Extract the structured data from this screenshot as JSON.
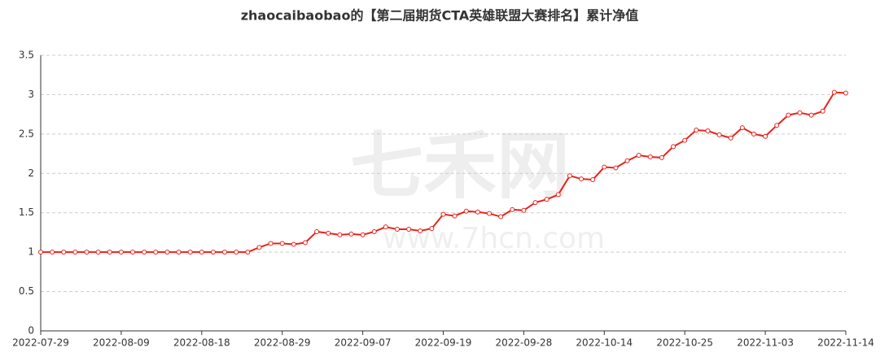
{
  "chart_data": {
    "type": "line",
    "title": "zhaocaibaobao的【第二届期货CTA英雄联盟大赛排名】累计净值",
    "watermark": "七禾网",
    "watermark_url": "www.7hcn.com",
    "categories": [
      "2022-07-29",
      null,
      null,
      null,
      null,
      null,
      null,
      "2022-08-09",
      null,
      null,
      null,
      null,
      null,
      null,
      "2022-08-18",
      null,
      null,
      null,
      null,
      null,
      null,
      "2022-08-29",
      null,
      null,
      null,
      null,
      null,
      null,
      "2022-09-07",
      null,
      null,
      null,
      null,
      null,
      null,
      "2022-09-19",
      null,
      null,
      null,
      null,
      null,
      null,
      "2022-09-28",
      null,
      null,
      null,
      null,
      null,
      null,
      "2022-10-14",
      null,
      null,
      null,
      null,
      null,
      null,
      "2022-10-25",
      null,
      null,
      null,
      null,
      null,
      null,
      "2022-11-03",
      null,
      null,
      null,
      null,
      null,
      null,
      "2022-11-14"
    ],
    "series": [
      {
        "name": "累计净值",
        "color": "#e8231b",
        "values": [
          1,
          1,
          1,
          1,
          1,
          1,
          1,
          1,
          1,
          1,
          1,
          1,
          1,
          1,
          1,
          1,
          1,
          1,
          1,
          1.06,
          1.11,
          1.11,
          1.1,
          1.12,
          1.26,
          1.24,
          1.22,
          1.23,
          1.22,
          1.26,
          1.32,
          1.29,
          1.29,
          1.27,
          1.3,
          1.48,
          1.46,
          1.52,
          1.51,
          1.49,
          1.45,
          1.54,
          1.53,
          1.63,
          1.67,
          1.73,
          1.97,
          1.93,
          1.92,
          2.08,
          2.07,
          2.16,
          2.23,
          2.21,
          2.2,
          2.34,
          2.42,
          2.55,
          2.54,
          2.49,
          2.45,
          2.58,
          2.5,
          2.47,
          2.61,
          2.74,
          2.77,
          2.74,
          2.79,
          3.03,
          3.02
        ]
      }
    ],
    "ylim": [
      0,
      3.5
    ],
    "yticks": [
      0,
      0.5,
      1,
      1.5,
      2,
      2.5,
      3,
      3.5
    ],
    "grid": true
  }
}
